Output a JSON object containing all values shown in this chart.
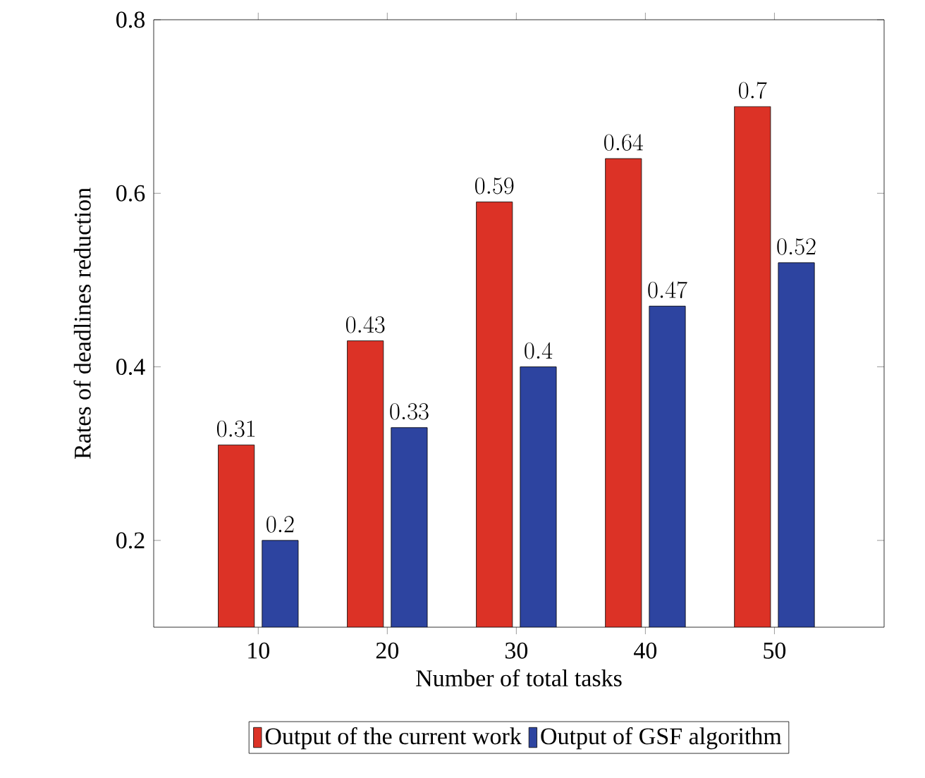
{
  "chart_data": {
    "type": "bar",
    "xlabel": "Number of total tasks",
    "ylabel": "Rates of deadlines reduction",
    "categories": [
      "10",
      "20",
      "30",
      "40",
      "50"
    ],
    "series": [
      {
        "name": "Output of the current work",
        "color": "#dc3226",
        "values": [
          0.31,
          0.43,
          0.59,
          0.64,
          0.7
        ]
      },
      {
        "name": "Output of GSF algorithm",
        "color": "#2d44a0",
        "values": [
          0.2,
          0.33,
          0.4,
          0.47,
          0.52
        ]
      }
    ],
    "ylim": [
      0.1,
      0.8
    ],
    "yticks": [
      0.2,
      0.4,
      0.6,
      0.8
    ],
    "data_labels": true,
    "legend": "bottom"
  }
}
